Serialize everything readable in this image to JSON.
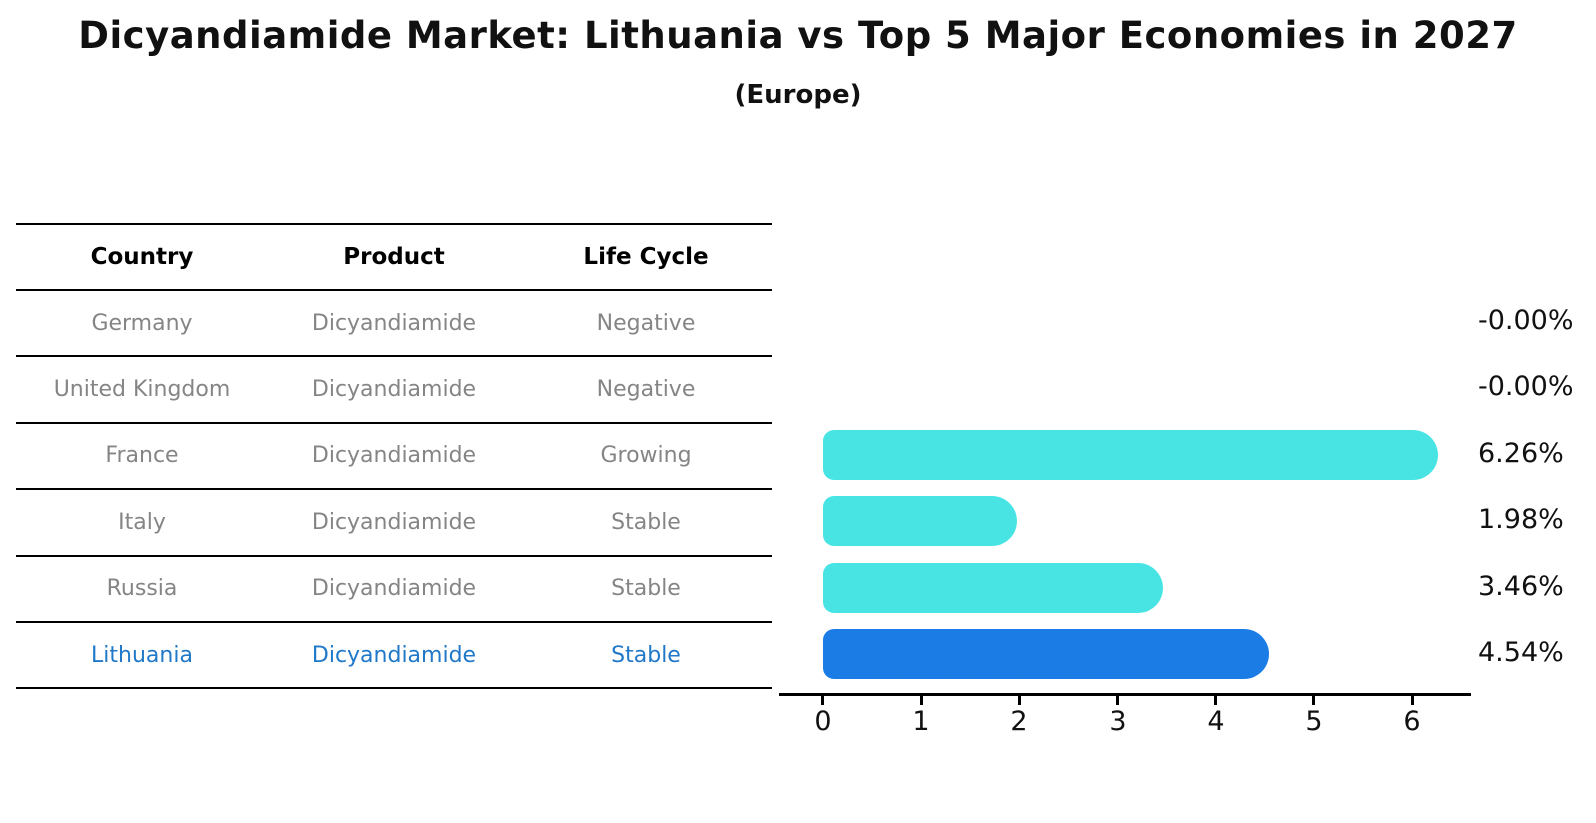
{
  "title": "Dicyandiamide Market: Lithuania vs Top 5 Major Economies in 2027",
  "subtitle": "(Europe)",
  "table": {
    "headers": {
      "country": "Country",
      "product": "Product",
      "life_cycle": "Life Cycle"
    },
    "rows": [
      {
        "country": "Germany",
        "product": "Dicyandiamide",
        "life_cycle": "Negative"
      },
      {
        "country": "United Kingdom",
        "product": "Dicyandiamide",
        "life_cycle": "Negative"
      },
      {
        "country": "France",
        "product": "Dicyandiamide",
        "life_cycle": "Growing"
      },
      {
        "country": "Italy",
        "product": "Dicyandiamide",
        "life_cycle": "Stable"
      },
      {
        "country": "Russia",
        "product": "Dicyandiamide",
        "life_cycle": "Stable"
      },
      {
        "country": "Lithuania",
        "product": "Dicyandiamide",
        "life_cycle": "Stable"
      }
    ],
    "highlight_index": 5
  },
  "chart_data": {
    "type": "bar",
    "orientation": "horizontal",
    "categories": [
      "Germany",
      "United Kingdom",
      "France",
      "Italy",
      "Russia",
      "Lithuania"
    ],
    "values": [
      -0.0,
      -0.0,
      6.26,
      1.98,
      3.46,
      4.54
    ],
    "value_labels": [
      "-0.00%",
      "-0.00%",
      "6.26%",
      "1.98%",
      "3.46%",
      "4.54%"
    ],
    "x_ticks": [
      "0",
      "1",
      "2",
      "3",
      "4",
      "5",
      "6"
    ],
    "xlim": [
      0,
      6.6
    ],
    "grid": false,
    "legend": false,
    "bar_color": "#48e4e4",
    "highlight_color": "#1b7ce6",
    "highlight_index": 5
  },
  "colors": {
    "bar_cyan": "#48e4e4",
    "bar_blue": "#1b7ce6",
    "highlight_text": "#1f78c8",
    "muted_text": "#858585",
    "text": "#111111"
  }
}
